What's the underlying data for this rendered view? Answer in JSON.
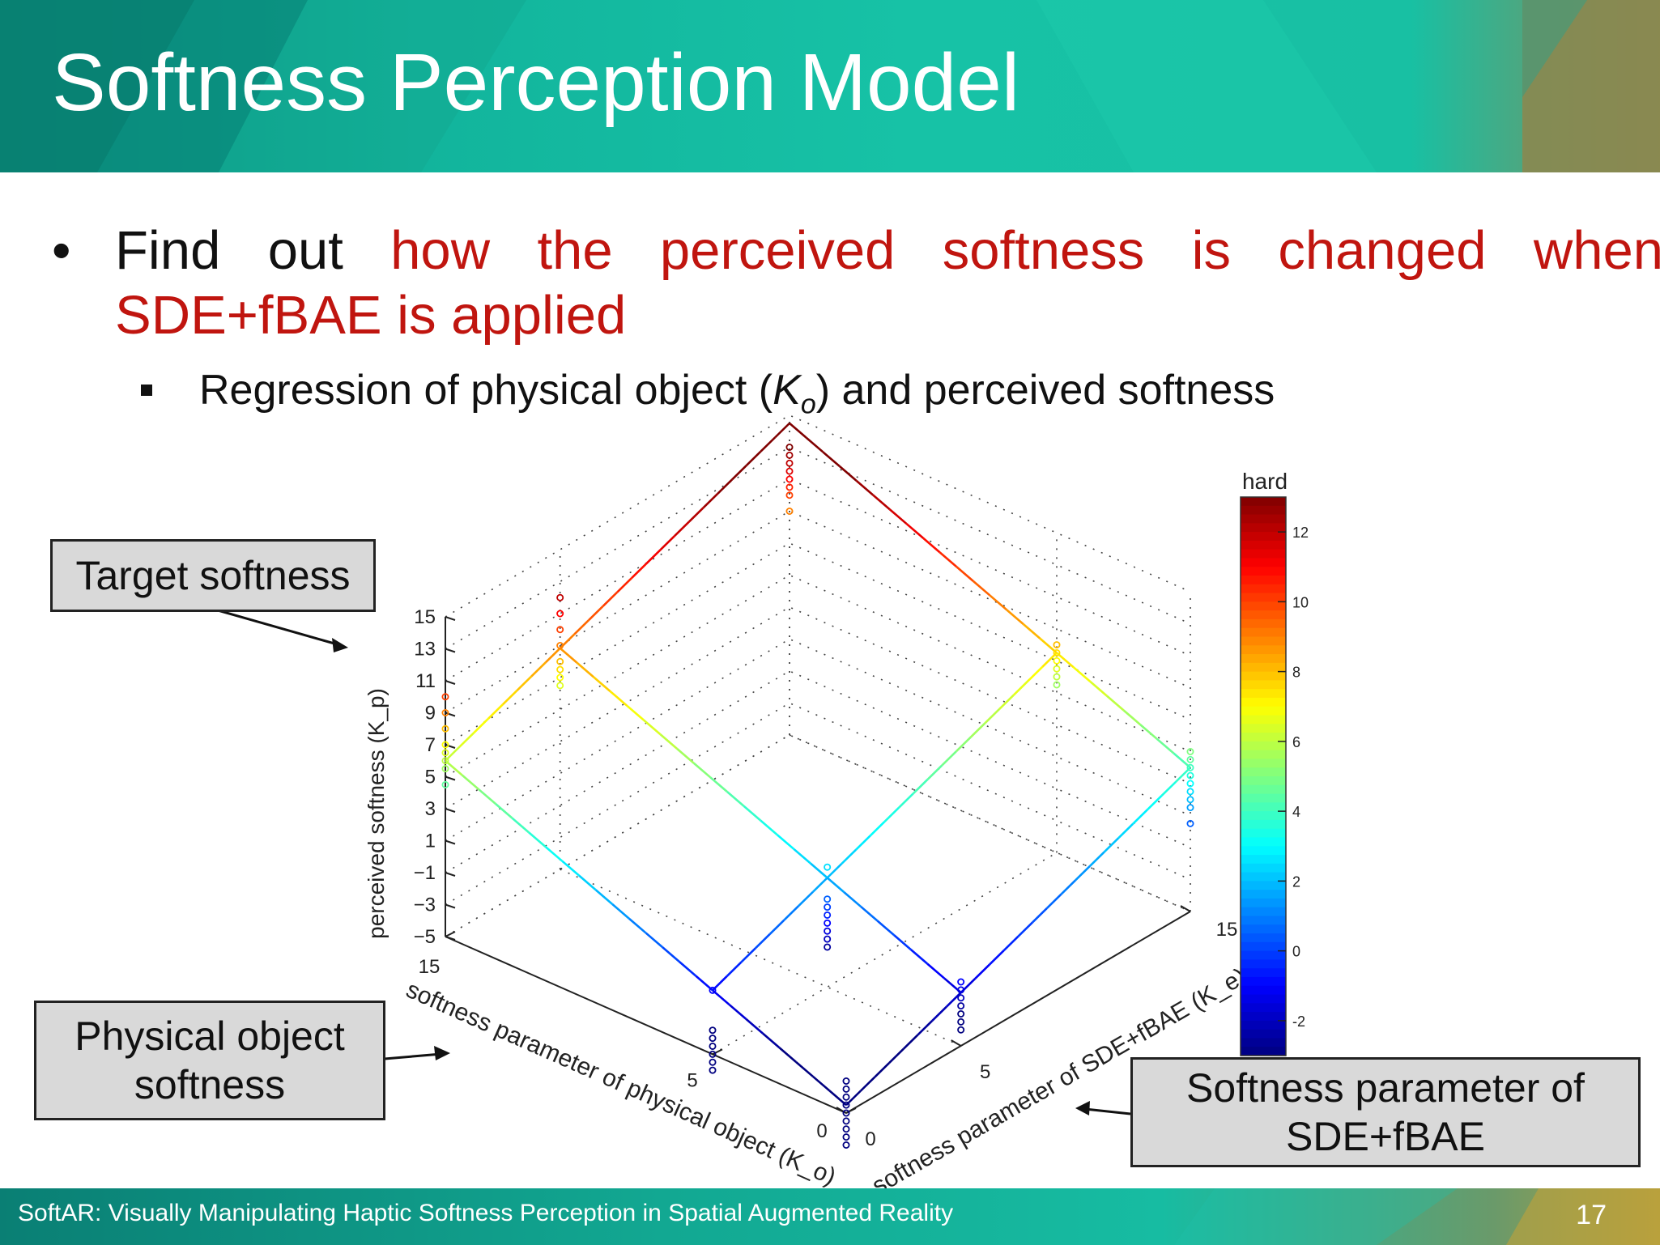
{
  "slide": {
    "title": "Softness Perception Model",
    "bullet": {
      "part1_words": [
        "Find",
        "out",
        "how",
        "the",
        "perceived",
        "softness",
        "is",
        "changed",
        "when"
      ],
      "red_from_index": 2,
      "part2": "SDE+fBAE is applied"
    },
    "sub_bullet": {
      "prefix": "Regression of physical object (",
      "symbol": "K",
      "subscript": "o",
      "suffix": ") and perceived softness"
    },
    "callouts": {
      "target": "Target softness",
      "physical_line1": "Physical object",
      "physical_line2": "softness",
      "sde_line1": "Softness parameter of",
      "sde_line2": "SDE+fBAE"
    },
    "footer": "SoftAR: Visually Manipulating Haptic Softness Perception in Spatial Augmented Reality",
    "page_number": "17"
  },
  "colors": {
    "accent_red": "#c0150f",
    "header_teal": "#17c2a6",
    "footer_teal": "#12a892"
  },
  "chart_data": {
    "type": "scatter",
    "subtype": "3d-scatter-with-regression-surface",
    "zlabel": "perceived softness (K_p)",
    "xlabel": "softness parameter of physical object (K_o)",
    "ylabel": "softness parameter of SDE+fBAE (K_e)",
    "z_ticks": [
      "15",
      "13",
      "11",
      "9",
      "7",
      "5",
      "3",
      "1",
      "−1",
      "−3",
      "−5"
    ],
    "x_ticks": [
      "15",
      "5",
      "0"
    ],
    "y_ticks": [
      "0",
      "5",
      "15"
    ],
    "zlim": [
      -5,
      15
    ],
    "colorbar": {
      "label": "hard",
      "ticks": [
        "12",
        "10",
        "8",
        "6",
        "4",
        "2",
        "0",
        "-2"
      ],
      "range": [
        -3,
        13
      ]
    },
    "surface_corners": [
      {
        "Ko": 0,
        "Ke": 0,
        "Kp": -4.5
      },
      {
        "Ko": 15,
        "Ke": 0,
        "Kp": 6
      },
      {
        "Ko": 15,
        "Ke": 15,
        "Kp": 14.5
      },
      {
        "Ko": 0,
        "Ke": 15,
        "Kp": 4
      }
    ],
    "points": [
      {
        "Ko": 0,
        "Ke": 0,
        "Kp": [
          -3,
          -3.5,
          -4,
          -4.5,
          -5,
          -5.5,
          -6,
          -6.5,
          -7
        ]
      },
      {
        "Ko": 5,
        "Ke": 0,
        "Kp": [
          -1,
          -3.5,
          -4,
          -4.5,
          -5,
          -5.5,
          -6
        ]
      },
      {
        "Ko": 15,
        "Ke": 0,
        "Kp": [
          10,
          9,
          8,
          7,
          6.5,
          6,
          5.5,
          4.5
        ]
      },
      {
        "Ko": 0,
        "Ke": 5,
        "Kp": [
          -1,
          -1.5,
          -2,
          -2.5,
          -3,
          -3.5,
          -4
        ]
      },
      {
        "Ko": 5,
        "Ke": 5,
        "Kp": [
          2.5,
          0.5,
          0,
          -0.5,
          -1,
          -1.5,
          -2,
          -2.5
        ]
      },
      {
        "Ko": 15,
        "Ke": 5,
        "Kp": [
          12,
          11,
          10,
          9,
          8,
          7.5,
          7,
          6.5
        ]
      },
      {
        "Ko": 0,
        "Ke": 15,
        "Kp": [
          5,
          4.5,
          4,
          3.5,
          3,
          2.5,
          2,
          1.5,
          0.5
        ]
      },
      {
        "Ko": 5,
        "Ke": 15,
        "Kp": [
          8,
          7.5,
          7,
          6.5,
          6,
          5.5
        ]
      },
      {
        "Ko": 15,
        "Ke": 15,
        "Kp": [
          13,
          12.5,
          12,
          11.5,
          11,
          10.5,
          10,
          9
        ]
      }
    ]
  }
}
